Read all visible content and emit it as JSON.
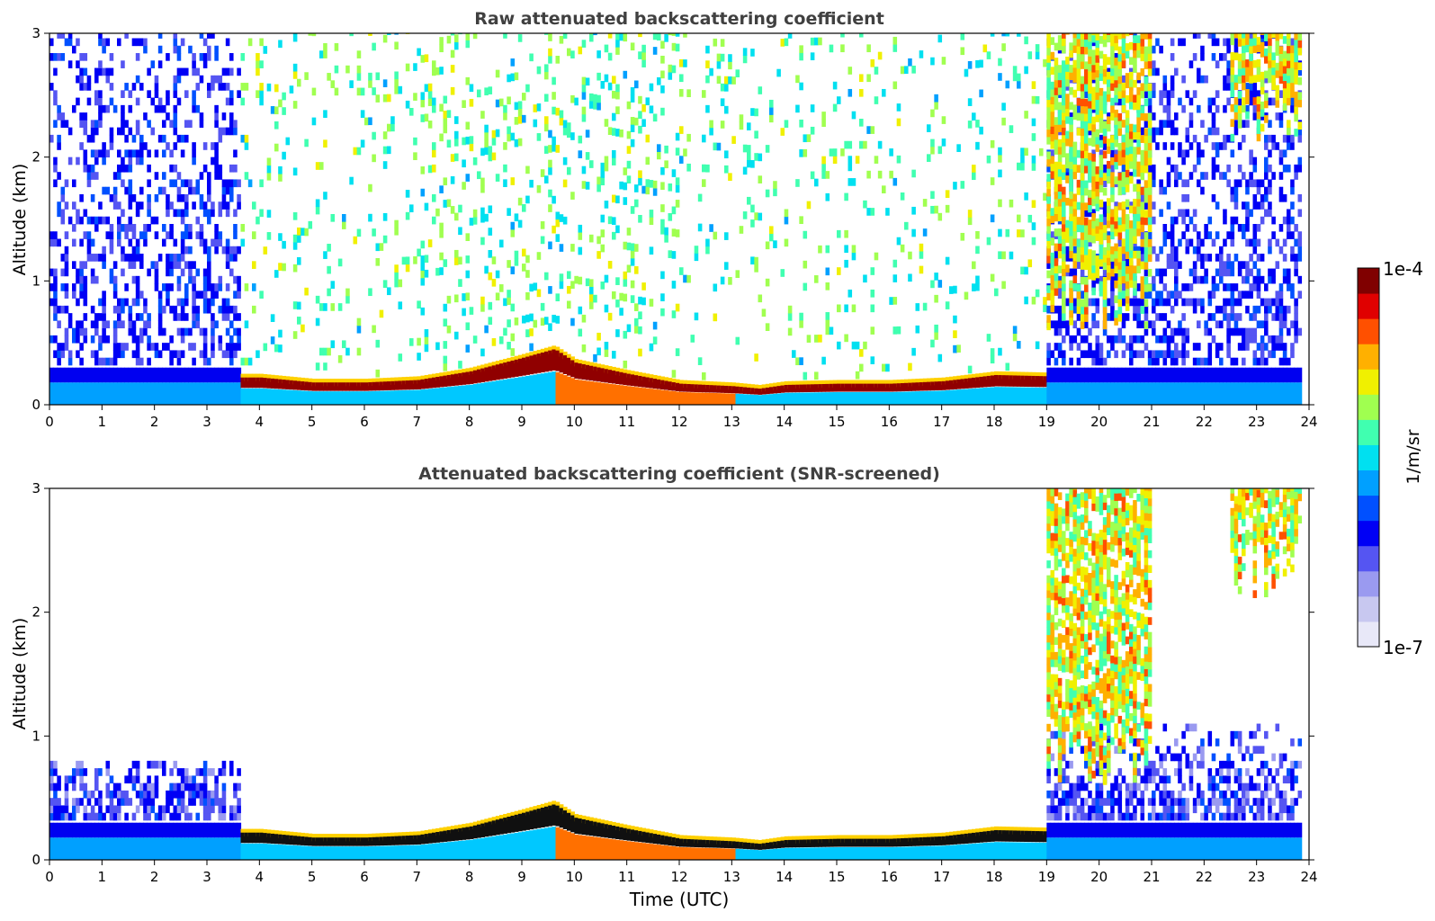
{
  "chart_data": [
    {
      "type": "heatmap",
      "title": "Raw attenuated backscattering coefficient",
      "xlabel": "",
      "ylabel": "Altitude (km)",
      "xlim": [
        0,
        24
      ],
      "ylim": [
        0,
        3
      ],
      "x_ticks": [
        "0",
        "1",
        "2",
        "3",
        "4",
        "5",
        "6",
        "7",
        "8",
        "9",
        "10",
        "11",
        "12",
        "13",
        "14",
        "15",
        "16",
        "17",
        "18",
        "19",
        "20",
        "21",
        "22",
        "23",
        "24"
      ],
      "y_ticks": [
        "0",
        "1",
        "2",
        "3"
      ],
      "colorscale": "jet",
      "value_range": [
        1e-07,
        0.0001
      ],
      "grid": false,
      "boundary_layer_top_km": [
        [
          3.6,
          0.22
        ],
        [
          4,
          0.22
        ],
        [
          5,
          0.18
        ],
        [
          6,
          0.18
        ],
        [
          7,
          0.2
        ],
        [
          8,
          0.27
        ],
        [
          9,
          0.38
        ],
        [
          9.6,
          0.45
        ],
        [
          10,
          0.34
        ],
        [
          11,
          0.25
        ],
        [
          12,
          0.17
        ],
        [
          13,
          0.15
        ],
        [
          13.5,
          0.13
        ],
        [
          14,
          0.16
        ],
        [
          15,
          0.17
        ],
        [
          16,
          0.17
        ],
        [
          17,
          0.19
        ],
        [
          18,
          0.24
        ],
        [
          19,
          0.23
        ]
      ],
      "cloud_regions": [
        {
          "t_start": 19.0,
          "t_end": 21.0,
          "alt_bottom_km": 0.6,
          "alt_top_km": 3.0
        },
        {
          "t_start": 22.5,
          "t_end": 23.8,
          "alt_bottom_km": 2.1,
          "alt_top_km": 3.0
        }
      ]
    },
    {
      "type": "heatmap",
      "title": "Attenuated backscattering coefficient (SNR-screened)",
      "xlabel": "Time (UTC)",
      "ylabel": "Altitude (km)",
      "xlim": [
        0,
        24
      ],
      "ylim": [
        0,
        3
      ],
      "x_ticks": [
        "0",
        "1",
        "2",
        "3",
        "4",
        "5",
        "6",
        "7",
        "8",
        "9",
        "10",
        "11",
        "12",
        "13",
        "14",
        "15",
        "16",
        "17",
        "18",
        "19",
        "20",
        "21",
        "22",
        "23",
        "24"
      ],
      "y_ticks": [
        "0",
        "1",
        "2",
        "3"
      ],
      "colorscale": "jet",
      "value_range": [
        1e-07,
        0.0001
      ],
      "grid": false,
      "boundary_layer_top_km": [
        [
          3.6,
          0.22
        ],
        [
          4,
          0.22
        ],
        [
          5,
          0.18
        ],
        [
          6,
          0.18
        ],
        [
          7,
          0.2
        ],
        [
          8,
          0.27
        ],
        [
          9,
          0.38
        ],
        [
          9.6,
          0.45
        ],
        [
          10,
          0.34
        ],
        [
          11,
          0.25
        ],
        [
          12,
          0.17
        ],
        [
          13,
          0.15
        ],
        [
          13.5,
          0.13
        ],
        [
          14,
          0.16
        ],
        [
          15,
          0.17
        ],
        [
          16,
          0.17
        ],
        [
          17,
          0.19
        ],
        [
          18,
          0.24
        ],
        [
          19,
          0.23
        ]
      ],
      "cloud_regions": [
        {
          "t_start": 19.0,
          "t_end": 21.0,
          "alt_bottom_km": 0.6,
          "alt_top_km": 3.0
        },
        {
          "t_start": 22.5,
          "t_end": 23.8,
          "alt_bottom_km": 2.1,
          "alt_top_km": 3.0
        }
      ]
    }
  ],
  "colorbar": {
    "label": "1/m/sr",
    "max_label": "1e-4",
    "min_label": "1e-7",
    "colors": [
      "#e8e8f8",
      "#c8c8f0",
      "#9a9af0",
      "#5555f2",
      "#0000f5",
      "#0050ff",
      "#00a0ff",
      "#00e0f0",
      "#40ffb0",
      "#a0ff50",
      "#f0f000",
      "#ffb000",
      "#ff5000",
      "#e00000",
      "#800000"
    ]
  }
}
